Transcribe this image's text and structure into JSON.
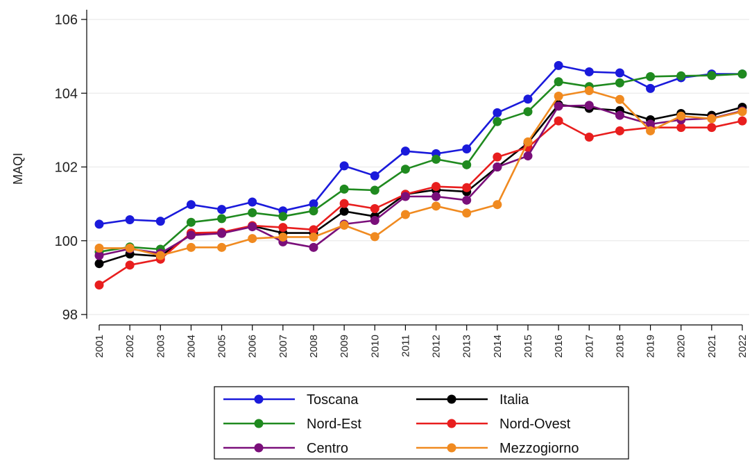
{
  "chart_data": {
    "type": "line",
    "title": "",
    "xlabel": "",
    "ylabel": "MAQI",
    "x": [
      "2001",
      "2002",
      "2003",
      "2004",
      "2005",
      "2006",
      "2007",
      "2008",
      "2009",
      "2010",
      "2011",
      "2012",
      "2013",
      "2014",
      "2015",
      "2016",
      "2017",
      "2018",
      "2019",
      "2020",
      "2021",
      "2022"
    ],
    "ylim": [
      98,
      106
    ],
    "yticks": [
      98,
      100,
      102,
      104,
      106
    ],
    "yticklabels": [
      "98",
      "100",
      "102",
      "104",
      "106"
    ],
    "grid": true,
    "legend_position": "bottom",
    "series": [
      {
        "name": "Toscana",
        "color": "#1a1adb",
        "values": [
          100.45,
          100.57,
          100.53,
          100.98,
          100.85,
          101.05,
          100.81,
          101.0,
          102.03,
          101.76,
          102.43,
          102.36,
          102.49,
          103.47,
          103.84,
          104.75,
          104.58,
          104.55,
          104.13,
          104.42,
          104.52,
          104.52
        ]
      },
      {
        "name": "Italia",
        "color": "#000000",
        "values": [
          99.38,
          99.64,
          99.58,
          100.18,
          100.2,
          100.4,
          100.21,
          100.21,
          100.8,
          100.66,
          101.26,
          101.38,
          101.33,
          102.0,
          102.65,
          103.69,
          103.59,
          103.53,
          103.28,
          103.45,
          103.4,
          103.62
        ]
      },
      {
        "name": "Nord-Est",
        "color": "#1f8a1f",
        "values": [
          99.7,
          99.83,
          99.77,
          100.5,
          100.6,
          100.76,
          100.66,
          100.81,
          101.4,
          101.37,
          101.94,
          102.21,
          102.06,
          103.23,
          103.5,
          104.31,
          104.18,
          104.28,
          104.45,
          104.47,
          104.48,
          104.52
        ]
      },
      {
        "name": "Nord-Ovest",
        "color": "#e81e1e",
        "values": [
          98.8,
          99.34,
          99.5,
          100.21,
          100.23,
          100.41,
          100.36,
          100.3,
          101.01,
          100.87,
          101.26,
          101.47,
          101.44,
          102.27,
          102.53,
          103.25,
          102.81,
          102.98,
          103.07,
          103.07,
          103.07,
          103.25
        ]
      },
      {
        "name": "Centro",
        "color": "#7a0f7a",
        "values": [
          99.6,
          99.78,
          99.66,
          100.15,
          100.2,
          100.38,
          99.97,
          99.82,
          100.45,
          100.55,
          101.2,
          101.2,
          101.1,
          102.0,
          102.3,
          103.65,
          103.67,
          103.4,
          103.16,
          103.28,
          103.32,
          103.52
        ]
      },
      {
        "name": "Mezzogiorno",
        "color": "#f08a20",
        "values": [
          99.8,
          99.8,
          99.6,
          99.82,
          99.82,
          100.06,
          100.1,
          100.1,
          100.42,
          100.11,
          100.71,
          100.94,
          100.75,
          100.98,
          102.68,
          103.92,
          104.07,
          103.83,
          102.98,
          103.38,
          103.31,
          103.5
        ]
      }
    ]
  }
}
